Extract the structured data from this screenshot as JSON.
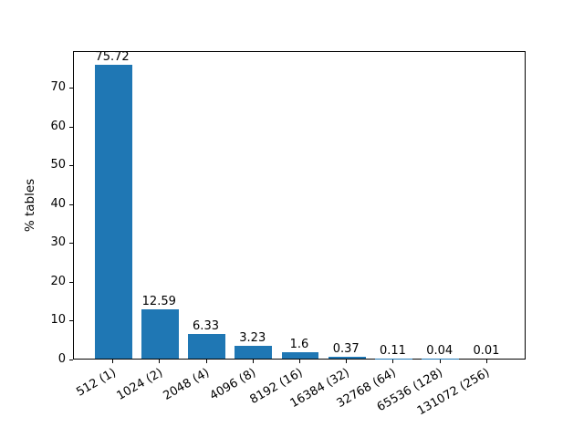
{
  "figure": {
    "background": "#ffffff"
  },
  "chart_data": {
    "type": "bar",
    "title": "",
    "xlabel": "",
    "ylabel": "% tables",
    "categories": [
      "512 (1)",
      "1024 (2)",
      "2048 (4)",
      "4096 (8)",
      "8192 (16)",
      "16384 (32)",
      "32768 (64)",
      "65536 (128)",
      "131072 (256)"
    ],
    "values": [
      75.72,
      12.59,
      6.33,
      3.23,
      1.6,
      0.37,
      0.11,
      0.04,
      0.01
    ],
    "bar_labels": [
      "75.72",
      "12.59",
      "6.33",
      "3.23",
      "1.6",
      "0.37",
      "0.11",
      "0.04",
      "0.01"
    ],
    "yticks": [
      0,
      10,
      20,
      30,
      40,
      50,
      60,
      70
    ],
    "ylim": [
      0,
      79.5
    ],
    "grid": false,
    "legend": false,
    "bar_color": "#1f77b4",
    "text_color": "#000000",
    "xtick_rotation_deg": 30
  }
}
